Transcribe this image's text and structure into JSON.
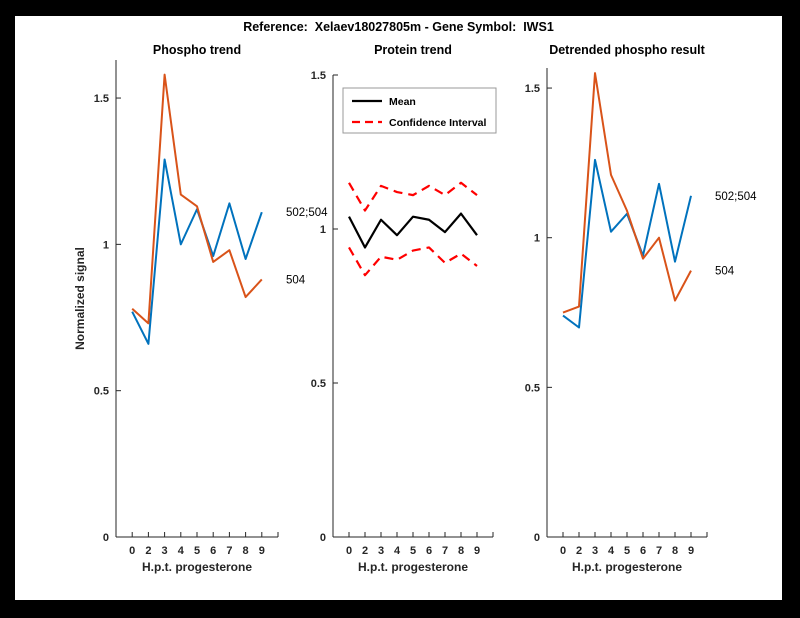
{
  "figure": {
    "title": "Reference:  Xelaev18027805m - Gene Symbol:  IWS1",
    "background_color": "#000000",
    "canvas_color": "#ffffff"
  },
  "colors": {
    "series_blue": "#0072BD",
    "series_orange": "#D95319",
    "mean_black": "#000000",
    "ci_red": "#FF0000",
    "axis": "#262626",
    "text": "#000000",
    "legend_border": "#999999"
  },
  "chart_data": [
    {
      "type": "line",
      "title": "Phospho trend",
      "xlabel": "H.p.t. progesterone",
      "ylabel": "Normalized signal",
      "x": [
        0,
        2,
        3,
        4,
        5,
        6,
        7,
        8,
        9
      ],
      "x_ticklabels": [
        "0",
        "2",
        "3",
        "4",
        "5",
        "6",
        "7",
        "8",
        "9"
      ],
      "y_tick_values": [
        0,
        0.5,
        1,
        1.5
      ],
      "y_ticklabels": [
        "0",
        "0.5",
        "1",
        "1.5"
      ],
      "ylim": [
        0,
        1.63
      ],
      "grid": false,
      "series": [
        {
          "name": "502;504",
          "color_key": "series_blue",
          "style": "solid",
          "values": [
            0.77,
            0.66,
            1.29,
            1.0,
            1.12,
            0.96,
            1.14,
            0.95,
            1.11
          ],
          "end_label": "502;504"
        },
        {
          "name": "504",
          "color_key": "series_orange",
          "style": "solid",
          "values": [
            0.78,
            0.73,
            1.58,
            1.17,
            1.13,
            0.94,
            0.98,
            0.82,
            0.88
          ],
          "end_label": "504"
        }
      ]
    },
    {
      "type": "line",
      "title": "Protein trend",
      "xlabel": "H.p.t. progesterone",
      "ylabel": "",
      "x": [
        0,
        2,
        3,
        4,
        5,
        6,
        7,
        8,
        9
      ],
      "x_ticklabels": [
        "0",
        "2",
        "3",
        "4",
        "5",
        "6",
        "7",
        "8",
        "9"
      ],
      "y_tick_values": [
        0,
        0.5,
        1,
        1.5
      ],
      "y_ticklabels": [
        "0",
        "0.5",
        "1",
        "1.5"
      ],
      "ylim": [
        0,
        1.5
      ],
      "grid": false,
      "series": [
        {
          "name": "Mean",
          "color_key": "mean_black",
          "style": "solid",
          "values": [
            1.04,
            0.94,
            1.03,
            0.98,
            1.04,
            1.03,
            0.99,
            1.05,
            0.98
          ]
        },
        {
          "name": "Confidence Interval upper",
          "color_key": "ci_red",
          "style": "dashed",
          "values": [
            1.15,
            1.06,
            1.14,
            1.12,
            1.11,
            1.14,
            1.11,
            1.15,
            1.11
          ]
        },
        {
          "name": "Confidence Interval lower",
          "color_key": "ci_red",
          "style": "dashed",
          "values": [
            0.94,
            0.85,
            0.91,
            0.9,
            0.93,
            0.94,
            0.89,
            0.92,
            0.88
          ]
        }
      ],
      "legend": {
        "position": "top-inside",
        "items": [
          {
            "label": "Mean",
            "color_key": "mean_black",
            "style": "solid"
          },
          {
            "label": "Confidence Interval",
            "color_key": "ci_red",
            "style": "dashed"
          }
        ]
      }
    },
    {
      "type": "line",
      "title": "Detrended phospho result",
      "xlabel": "H.p.t. progesterone",
      "ylabel": "",
      "x": [
        0,
        2,
        3,
        4,
        5,
        6,
        7,
        8,
        9
      ],
      "x_ticklabels": [
        "0",
        "2",
        "3",
        "4",
        "5",
        "6",
        "7",
        "8",
        "9"
      ],
      "y_tick_values": [
        0,
        0.5,
        1,
        1.5
      ],
      "y_ticklabels": [
        "0",
        "0.5",
        "1",
        "1.5"
      ],
      "ylim": [
        0,
        1.567
      ],
      "grid": false,
      "series": [
        {
          "name": "502;504",
          "color_key": "series_blue",
          "style": "solid",
          "values": [
            0.74,
            0.7,
            1.26,
            1.02,
            1.08,
            0.94,
            1.18,
            0.92,
            1.14
          ],
          "end_label": "502;504"
        },
        {
          "name": "504",
          "color_key": "series_orange",
          "style": "solid",
          "values": [
            0.75,
            0.77,
            1.55,
            1.21,
            1.09,
            0.93,
            1.0,
            0.79,
            0.89
          ],
          "end_label": "504"
        }
      ]
    }
  ]
}
